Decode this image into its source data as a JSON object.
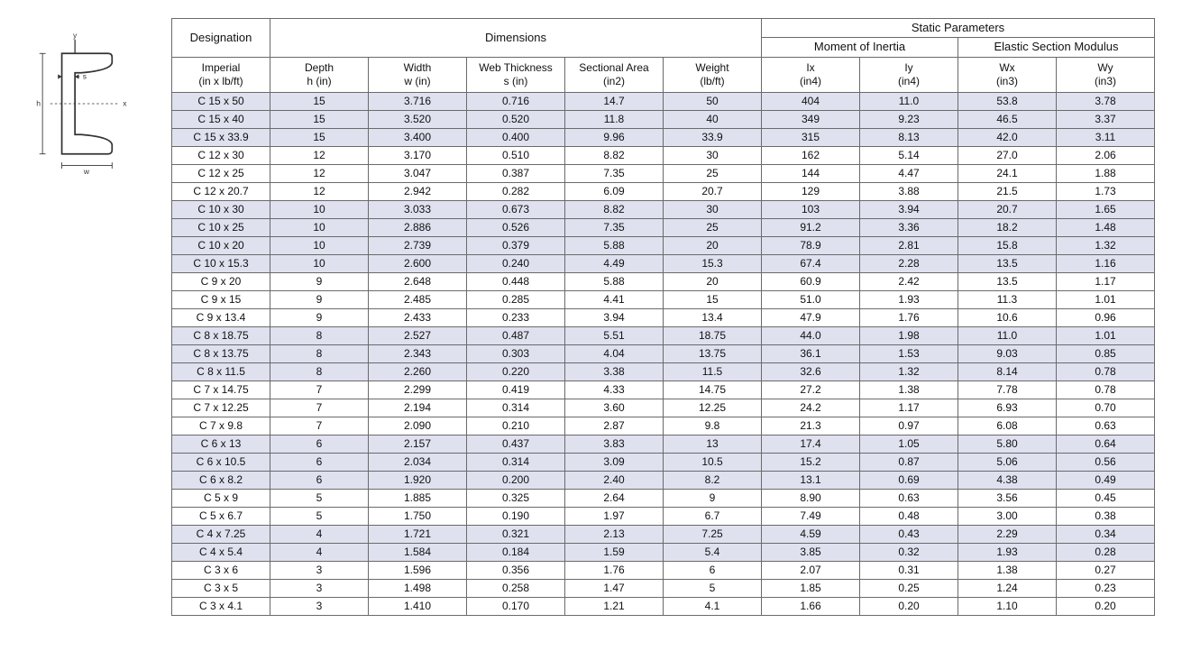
{
  "diagram": {
    "axis_y": "y",
    "axis_x": "x",
    "label_h": "h",
    "label_s": "s",
    "label_w": "w",
    "stroke": "#333333"
  },
  "table": {
    "group_headers": {
      "designation": "Designation",
      "dimensions": "Dimensions",
      "static": "Static Parameters",
      "moment": "Moment of Inertia",
      "modulus": "Elastic Section Modulus"
    },
    "sub_headers": [
      {
        "line1": "Imperial",
        "line2": "(in x lb/ft)"
      },
      {
        "line1": "Depth",
        "line2": "h (in)"
      },
      {
        "line1": "Width",
        "line2": "w (in)"
      },
      {
        "line1": "Web Thickness",
        "line2": "s (in)"
      },
      {
        "line1": "Sectional Area",
        "line2": "(in2)"
      },
      {
        "line1": "Weight",
        "line2": "(lb/ft)"
      },
      {
        "line1": "Ix",
        "line2": "(in4)"
      },
      {
        "line1": "Iy",
        "line2": "(in4)"
      },
      {
        "line1": "Wx",
        "line2": "(in3)"
      },
      {
        "line1": "Wy",
        "line2": "(in3)"
      }
    ],
    "row_shade_color": "#dfe1ef",
    "border_color": "#6a6a6a",
    "text_color": "#111111",
    "font_size_header": 13,
    "font_size_body": 12,
    "rows": [
      {
        "shaded": true,
        "cells": [
          "C 15 x 50",
          "15",
          "3.716",
          "0.716",
          "14.7",
          "50",
          "404",
          "11.0",
          "53.8",
          "3.78"
        ]
      },
      {
        "shaded": true,
        "cells": [
          "C 15 x 40",
          "15",
          "3.520",
          "0.520",
          "11.8",
          "40",
          "349",
          "9.23",
          "46.5",
          "3.37"
        ]
      },
      {
        "shaded": true,
        "cells": [
          "C 15 x 33.9",
          "15",
          "3.400",
          "0.400",
          "9.96",
          "33.9",
          "315",
          "8.13",
          "42.0",
          "3.11"
        ]
      },
      {
        "shaded": false,
        "cells": [
          "C 12 x 30",
          "12",
          "3.170",
          "0.510",
          "8.82",
          "30",
          "162",
          "5.14",
          "27.0",
          "2.06"
        ]
      },
      {
        "shaded": false,
        "cells": [
          "C 12 x 25",
          "12",
          "3.047",
          "0.387",
          "7.35",
          "25",
          "144",
          "4.47",
          "24.1",
          "1.88"
        ]
      },
      {
        "shaded": false,
        "cells": [
          "C 12 x 20.7",
          "12",
          "2.942",
          "0.282",
          "6.09",
          "20.7",
          "129",
          "3.88",
          "21.5",
          "1.73"
        ]
      },
      {
        "shaded": true,
        "cells": [
          "C 10 x 30",
          "10",
          "3.033",
          "0.673",
          "8.82",
          "30",
          "103",
          "3.94",
          "20.7",
          "1.65"
        ]
      },
      {
        "shaded": true,
        "cells": [
          "C 10 x 25",
          "10",
          "2.886",
          "0.526",
          "7.35",
          "25",
          "91.2",
          "3.36",
          "18.2",
          "1.48"
        ]
      },
      {
        "shaded": true,
        "cells": [
          "C 10 x 20",
          "10",
          "2.739",
          "0.379",
          "5.88",
          "20",
          "78.9",
          "2.81",
          "15.8",
          "1.32"
        ]
      },
      {
        "shaded": true,
        "cells": [
          "C 10 x 15.3",
          "10",
          "2.600",
          "0.240",
          "4.49",
          "15.3",
          "67.4",
          "2.28",
          "13.5",
          "1.16"
        ]
      },
      {
        "shaded": false,
        "cells": [
          "C 9 x 20",
          "9",
          "2.648",
          "0.448",
          "5.88",
          "20",
          "60.9",
          "2.42",
          "13.5",
          "1.17"
        ]
      },
      {
        "shaded": false,
        "cells": [
          "C 9 x 15",
          "9",
          "2.485",
          "0.285",
          "4.41",
          "15",
          "51.0",
          "1.93",
          "11.3",
          "1.01"
        ]
      },
      {
        "shaded": false,
        "cells": [
          "C 9 x 13.4",
          "9",
          "2.433",
          "0.233",
          "3.94",
          "13.4",
          "47.9",
          "1.76",
          "10.6",
          "0.96"
        ]
      },
      {
        "shaded": true,
        "cells": [
          "C 8 x 18.75",
          "8",
          "2.527",
          "0.487",
          "5.51",
          "18.75",
          "44.0",
          "1.98",
          "11.0",
          "1.01"
        ]
      },
      {
        "shaded": true,
        "cells": [
          "C 8 x 13.75",
          "8",
          "2.343",
          "0.303",
          "4.04",
          "13.75",
          "36.1",
          "1.53",
          "9.03",
          "0.85"
        ]
      },
      {
        "shaded": true,
        "cells": [
          "C 8 x 11.5",
          "8",
          "2.260",
          "0.220",
          "3.38",
          "11.5",
          "32.6",
          "1.32",
          "8.14",
          "0.78"
        ]
      },
      {
        "shaded": false,
        "cells": [
          "C 7 x 14.75",
          "7",
          "2.299",
          "0.419",
          "4.33",
          "14.75",
          "27.2",
          "1.38",
          "7.78",
          "0.78"
        ]
      },
      {
        "shaded": false,
        "cells": [
          "C 7 x 12.25",
          "7",
          "2.194",
          "0.314",
          "3.60",
          "12.25",
          "24.2",
          "1.17",
          "6.93",
          "0.70"
        ]
      },
      {
        "shaded": false,
        "cells": [
          "C 7 x 9.8",
          "7",
          "2.090",
          "0.210",
          "2.87",
          "9.8",
          "21.3",
          "0.97",
          "6.08",
          "0.63"
        ]
      },
      {
        "shaded": true,
        "cells": [
          "C 6 x 13",
          "6",
          "2.157",
          "0.437",
          "3.83",
          "13",
          "17.4",
          "1.05",
          "5.80",
          "0.64"
        ]
      },
      {
        "shaded": true,
        "cells": [
          "C 6 x 10.5",
          "6",
          "2.034",
          "0.314",
          "3.09",
          "10.5",
          "15.2",
          "0.87",
          "5.06",
          "0.56"
        ]
      },
      {
        "shaded": true,
        "cells": [
          "C 6 x 8.2",
          "6",
          "1.920",
          "0.200",
          "2.40",
          "8.2",
          "13.1",
          "0.69",
          "4.38",
          "0.49"
        ]
      },
      {
        "shaded": false,
        "cells": [
          "C 5 x 9",
          "5",
          "1.885",
          "0.325",
          "2.64",
          "9",
          "8.90",
          "0.63",
          "3.56",
          "0.45"
        ]
      },
      {
        "shaded": false,
        "cells": [
          "C 5 x 6.7",
          "5",
          "1.750",
          "0.190",
          "1.97",
          "6.7",
          "7.49",
          "0.48",
          "3.00",
          "0.38"
        ]
      },
      {
        "shaded": true,
        "cells": [
          "C 4 x 7.25",
          "4",
          "1.721",
          "0.321",
          "2.13",
          "7.25",
          "4.59",
          "0.43",
          "2.29",
          "0.34"
        ]
      },
      {
        "shaded": true,
        "cells": [
          "C 4 x 5.4",
          "4",
          "1.584",
          "0.184",
          "1.59",
          "5.4",
          "3.85",
          "0.32",
          "1.93",
          "0.28"
        ]
      },
      {
        "shaded": false,
        "cells": [
          "C 3 x 6",
          "3",
          "1.596",
          "0.356",
          "1.76",
          "6",
          "2.07",
          "0.31",
          "1.38",
          "0.27"
        ]
      },
      {
        "shaded": false,
        "cells": [
          "C 3 x 5",
          "3",
          "1.498",
          "0.258",
          "1.47",
          "5",
          "1.85",
          "0.25",
          "1.24",
          "0.23"
        ]
      },
      {
        "shaded": false,
        "cells": [
          "C 3 x 4.1",
          "3",
          "1.410",
          "0.170",
          "1.21",
          "4.1",
          "1.66",
          "0.20",
          "1.10",
          "0.20"
        ]
      }
    ]
  }
}
